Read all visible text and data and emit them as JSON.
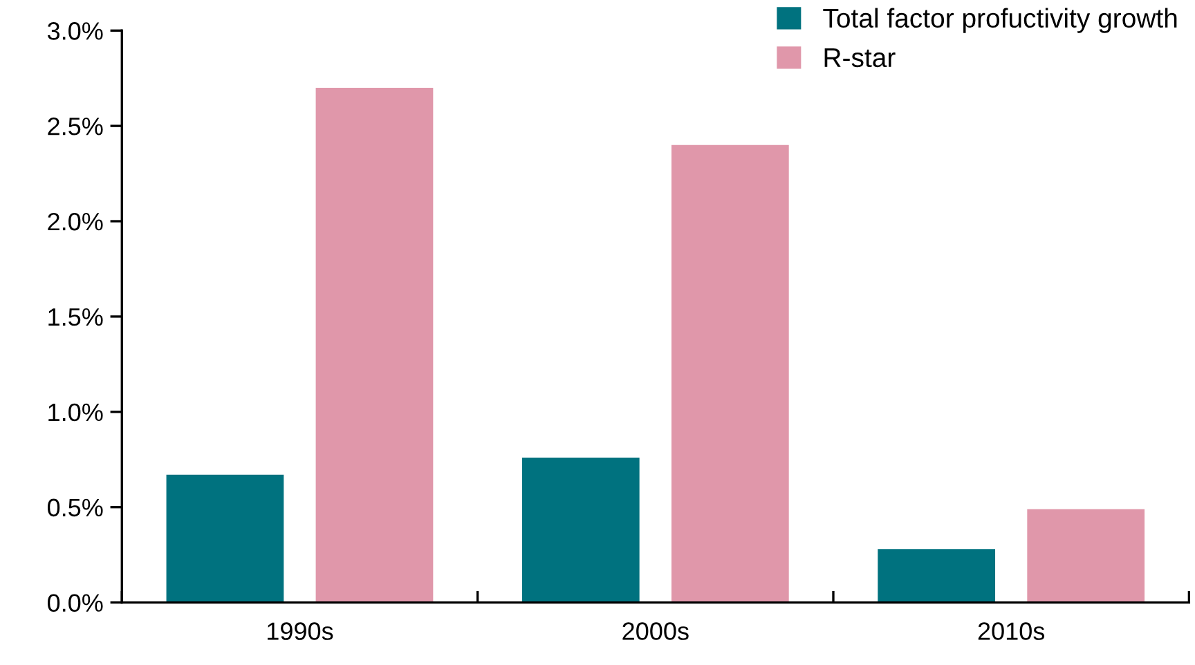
{
  "chart_data": {
    "type": "bar",
    "categories": [
      "1990s",
      "2000s",
      "2010s"
    ],
    "series": [
      {
        "name": "Total factor profuctivity growth",
        "color": "#00727f",
        "values": [
          0.67,
          0.76,
          0.28
        ]
      },
      {
        "name": "R-star",
        "color": "#e097aa",
        "values": [
          2.7,
          2.4,
          0.49
        ]
      }
    ],
    "ylim": [
      0,
      3.0
    ],
    "yticks": [
      {
        "value": 0,
        "label": "0.0%"
      },
      {
        "value": 0.5,
        "label": "0.5%"
      },
      {
        "value": 1.0,
        "label": "1.0%"
      },
      {
        "value": 1.5,
        "label": "1.5%"
      },
      {
        "value": 2.0,
        "label": "2.0%"
      },
      {
        "value": 2.5,
        "label": "2.5%"
      },
      {
        "value": 3.0,
        "label": "3.0%"
      }
    ],
    "grid": false,
    "legend": "top right"
  }
}
